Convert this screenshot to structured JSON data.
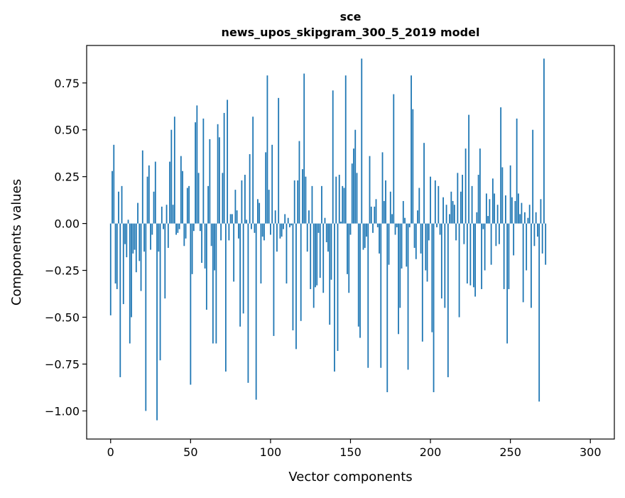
{
  "chart_data": {
    "type": "bar",
    "title_line1": "sce",
    "title_line2": "news_upos_skipgram_300_5_2019 model",
    "xlabel": "Vector components",
    "ylabel": "Components values",
    "xlim": [
      -15,
      315
    ],
    "ylim": [
      -1.15,
      0.95
    ],
    "x_ticks": [
      0,
      50,
      100,
      150,
      200,
      250,
      300
    ],
    "x_tick_labels": [
      "0",
      "50",
      "100",
      "150",
      "200",
      "250",
      "300"
    ],
    "y_ticks": [
      0.75,
      0.5,
      0.25,
      0.0,
      -0.25,
      -0.5,
      -0.75,
      -1.0
    ],
    "y_tick_labels": [
      "0.75",
      "0.50",
      "0.25",
      "0.00",
      "−0.25",
      "−0.50",
      "−0.75",
      "−1.00"
    ],
    "bar_color": "#1f77b4",
    "values": [
      -0.49,
      0.28,
      0.42,
      -0.32,
      -0.35,
      0.17,
      -0.82,
      0.2,
      -0.43,
      -0.11,
      -0.18,
      0.02,
      -0.64,
      -0.5,
      -0.16,
      -0.14,
      -0.26,
      0.11,
      -0.2,
      -0.36,
      0.39,
      -0.15,
      -1.0,
      0.25,
      0.31,
      -0.14,
      -0.06,
      0.17,
      0.33,
      -1.05,
      -0.15,
      -0.73,
      0.09,
      -0.03,
      -0.4,
      0.1,
      -0.13,
      0.33,
      0.5,
      0.1,
      0.57,
      -0.06,
      -0.05,
      -0.03,
      0.36,
      0.28,
      -0.12,
      -0.08,
      0.19,
      0.2,
      -0.86,
      -0.27,
      -0.04,
      0.54,
      0.63,
      0.27,
      -0.04,
      -0.21,
      0.56,
      -0.24,
      -0.46,
      0.2,
      0.45,
      -0.12,
      -0.64,
      -0.25,
      -0.64,
      0.53,
      0.46,
      -0.09,
      0.27,
      0.59,
      -0.79,
      0.66,
      -0.09,
      0.05,
      0.05,
      -0.31,
      0.18,
      0.07,
      -0.08,
      -0.55,
      0.23,
      -0.48,
      0.26,
      0.02,
      -0.85,
      0.37,
      -0.03,
      0.57,
      -0.05,
      -0.94,
      0.13,
      0.11,
      -0.32,
      -0.07,
      -0.09,
      0.38,
      0.79,
      0.18,
      -0.06,
      0.42,
      -0.6,
      0.07,
      -0.15,
      0.67,
      -0.08,
      -0.07,
      -0.03,
      0.05,
      -0.32,
      0.03,
      -0.02,
      -0.01,
      -0.57,
      0.23,
      -0.67,
      0.23,
      0.44,
      -0.52,
      0.29,
      0.8,
      0.25,
      -0.15,
      0.07,
      -0.35,
      0.2,
      -0.45,
      -0.34,
      -0.33,
      -0.05,
      -0.29,
      0.2,
      -0.37,
      0.03,
      -0.1,
      -0.15,
      -0.54,
      -0.3,
      0.71,
      -0.79,
      0.25,
      -0.68,
      0.26,
      0.01,
      0.2,
      0.19,
      0.79,
      -0.27,
      -0.37,
      -0.06,
      0.32,
      0.4,
      0.5,
      0.27,
      -0.55,
      -0.61,
      0.88,
      -0.14,
      -0.13,
      -0.07,
      -0.77,
      0.36,
      0.09,
      -0.05,
      0.09,
      0.13,
      -0.02,
      -0.16,
      -0.77,
      0.38,
      0.12,
      0.23,
      -0.9,
      -0.22,
      0.17,
      0.05,
      0.69,
      -0.06,
      -0.02,
      -0.59,
      -0.45,
      -0.24,
      0.12,
      0.03,
      -0.23,
      -0.78,
      -0.02,
      0.79,
      0.61,
      -0.13,
      -0.19,
      0.07,
      0.19,
      -0.16,
      -0.63,
      0.43,
      -0.25,
      -0.31,
      -0.09,
      0.25,
      -0.58,
      -0.9,
      0.23,
      -0.02,
      0.2,
      -0.06,
      -0.4,
      0.14,
      -0.45,
      0.1,
      -0.82,
      0.05,
      0.17,
      0.12,
      0.1,
      -0.09,
      0.27,
      -0.5,
      0.17,
      0.26,
      -0.11,
      0.4,
      -0.32,
      0.58,
      -0.33,
      0.2,
      -0.34,
      -0.39,
      0.06,
      0.26,
      0.4,
      -0.35,
      -0.03,
      -0.25,
      0.16,
      0.04,
      0.13,
      -0.22,
      0.24,
      0.16,
      -0.12,
      0.1,
      -0.11,
      0.62,
      0.3,
      -0.35,
      0.15,
      -0.64,
      -0.35,
      0.31,
      0.14,
      -0.17,
      0.12,
      0.56,
      0.16,
      0.05,
      0.11,
      -0.42,
      0.06,
      -0.25,
      0.03,
      0.1,
      -0.45,
      0.5,
      -0.12,
      0.06,
      -0.07,
      -0.95,
      0.13,
      -0.16,
      0.88,
      -0.22
    ]
  }
}
